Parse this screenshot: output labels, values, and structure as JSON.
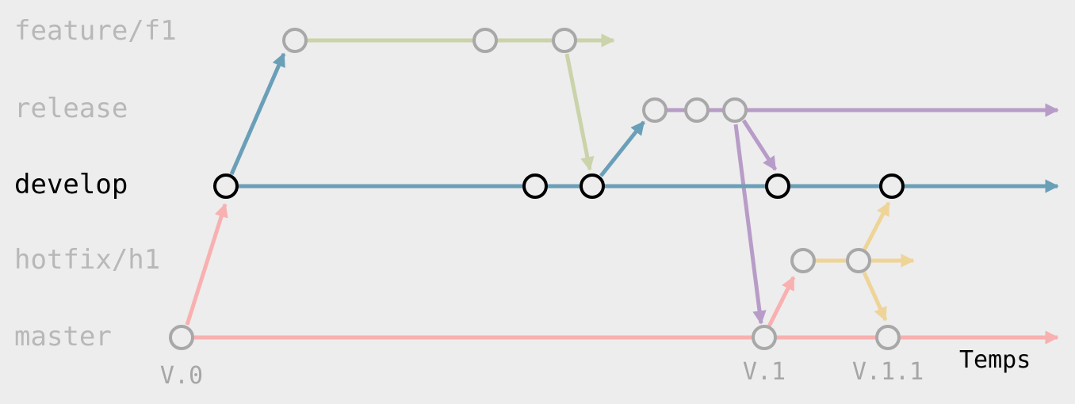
{
  "colors": {
    "background": "#ededed",
    "feature": "#cad3a9",
    "develop": "#6a9fb8",
    "release": "#b89cc8",
    "hotfix": "#efd498",
    "master": "#f9b0b0",
    "inactive_node": "#a8a8a8",
    "active_node": "#000000",
    "inactive_text": "#b8b8b8",
    "active_text": "#000000"
  },
  "lanes": [
    {
      "id": "feature",
      "label": "feature/f1",
      "active": false
    },
    {
      "id": "release",
      "label": "release",
      "active": false
    },
    {
      "id": "develop",
      "label": "develop",
      "active": true
    },
    {
      "id": "hotfix",
      "label": "hotfix/h1",
      "active": false
    },
    {
      "id": "master",
      "label": "master",
      "active": false
    }
  ],
  "tags": {
    "v0": "V.0",
    "v1": "V.1",
    "v11": "V.1.1"
  },
  "axis": {
    "label": "Temps"
  }
}
